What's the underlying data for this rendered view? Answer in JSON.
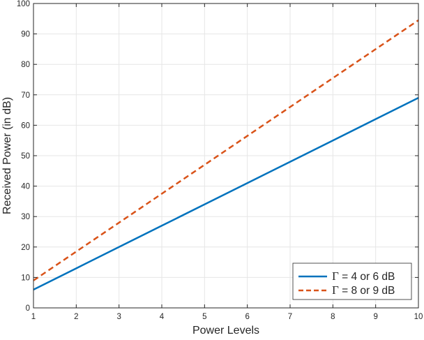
{
  "chart_data": {
    "type": "line",
    "title": "",
    "xlabel": "Power Levels",
    "ylabel": "Received Power (in dB)",
    "xlim": [
      1,
      10
    ],
    "ylim": [
      0,
      100
    ],
    "xticks": [
      "1",
      "2",
      "3",
      "4",
      "5",
      "6",
      "7",
      "8",
      "9",
      "10"
    ],
    "yticks": [
      "0",
      "10",
      "20",
      "30",
      "40",
      "50",
      "60",
      "70",
      "80",
      "90",
      "100"
    ],
    "grid": true,
    "legend_position": "bottom-right",
    "series": [
      {
        "name_symbol": "Γ",
        "name_rest": " = 4 or 6 dB",
        "color": "#0072BD",
        "line_style": "solid",
        "x": [
          1,
          2,
          3,
          4,
          5,
          6,
          7,
          8,
          9,
          10
        ],
        "y": [
          6,
          13,
          20,
          27,
          34,
          41,
          48,
          55,
          62,
          69
        ]
      },
      {
        "name_symbol": "Γ",
        "name_rest": " = 8 or 9 dB",
        "color": "#D95319",
        "line_style": "dashed",
        "x": [
          1,
          2,
          3,
          4,
          5,
          6,
          7,
          8,
          9,
          10
        ],
        "y": [
          9,
          18.5,
          28,
          37.5,
          47,
          56.5,
          66,
          75.5,
          85,
          94.5
        ]
      }
    ]
  }
}
